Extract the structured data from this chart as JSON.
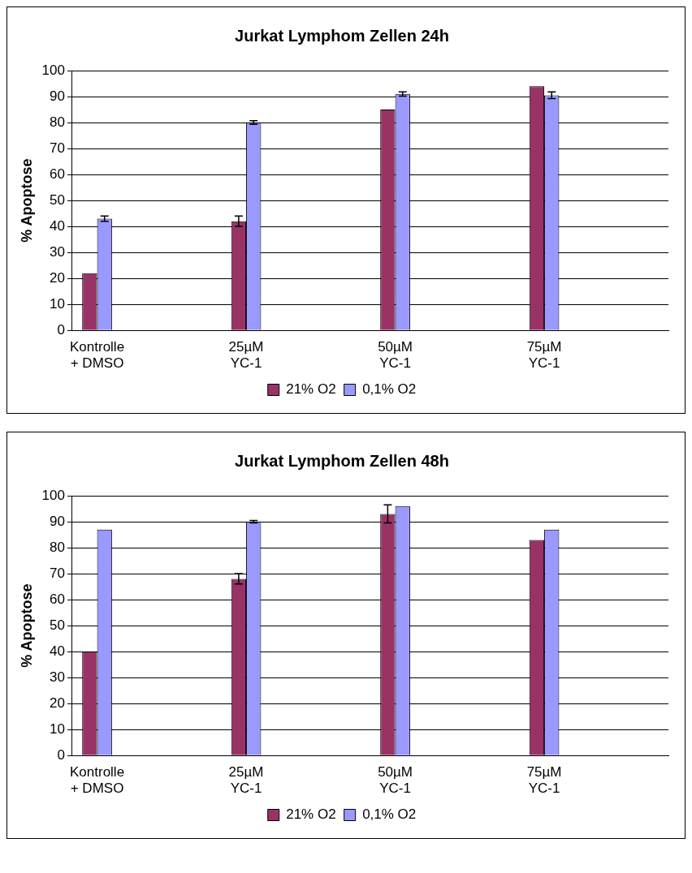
{
  "chart_data": [
    {
      "type": "bar",
      "title": "Jurkat Lymphom Zellen 24h",
      "ylabel": "% Apoptose",
      "categories": [
        "Kontrolle\n+ DMSO",
        null,
        null,
        "25µM\nYC-1",
        null,
        null,
        "50µM\nYC-1",
        null,
        null,
        "75µM\nYC-1",
        null,
        null
      ],
      "series": [
        {
          "name": "21% O2",
          "color": "#993366",
          "values": [
            22,
            null,
            null,
            42,
            null,
            null,
            85,
            null,
            null,
            94,
            null,
            null
          ],
          "errors": [
            null,
            null,
            null,
            2,
            null,
            null,
            null,
            null,
            null,
            null,
            null,
            null
          ]
        },
        {
          "name": "0,1% O2",
          "color": "#9999ff",
          "values": [
            43,
            null,
            null,
            80,
            null,
            null,
            91,
            null,
            null,
            90.5,
            null,
            null
          ],
          "errors": [
            1,
            null,
            null,
            0.7,
            null,
            null,
            0.8,
            null,
            null,
            1.3,
            null,
            null
          ]
        }
      ],
      "ylim": [
        0,
        100
      ],
      "yticks": [
        0,
        10,
        20,
        30,
        40,
        50,
        60,
        70,
        80,
        90,
        100
      ],
      "grid": "y",
      "legend": "bottom"
    },
    {
      "type": "bar",
      "title": "Jurkat Lymphom Zellen 48h",
      "ylabel": "% Apoptose",
      "categories": [
        "Kontrolle\n+ DMSO",
        null,
        null,
        "25µM\nYC-1",
        null,
        null,
        "50µM\nYC-1",
        null,
        null,
        "75µM\nYC-1",
        null,
        null
      ],
      "series": [
        {
          "name": "21% O2",
          "color": "#993366",
          "values": [
            40,
            null,
            null,
            68,
            null,
            null,
            93,
            null,
            null,
            83,
            null,
            null
          ],
          "errors": [
            null,
            null,
            null,
            2,
            null,
            null,
            3.5,
            null,
            null,
            null,
            null,
            null
          ]
        },
        {
          "name": "0,1% O2",
          "color": "#9999ff",
          "values": [
            87,
            null,
            null,
            90,
            null,
            null,
            96,
            null,
            null,
            87,
            null,
            null
          ],
          "errors": [
            null,
            null,
            null,
            0.5,
            null,
            null,
            null,
            null,
            null,
            null,
            null,
            null
          ]
        }
      ],
      "ylim": [
        0,
        100
      ],
      "yticks": [
        0,
        10,
        20,
        30,
        40,
        50,
        60,
        70,
        80,
        90,
        100
      ],
      "grid": "y",
      "legend": "bottom"
    }
  ]
}
